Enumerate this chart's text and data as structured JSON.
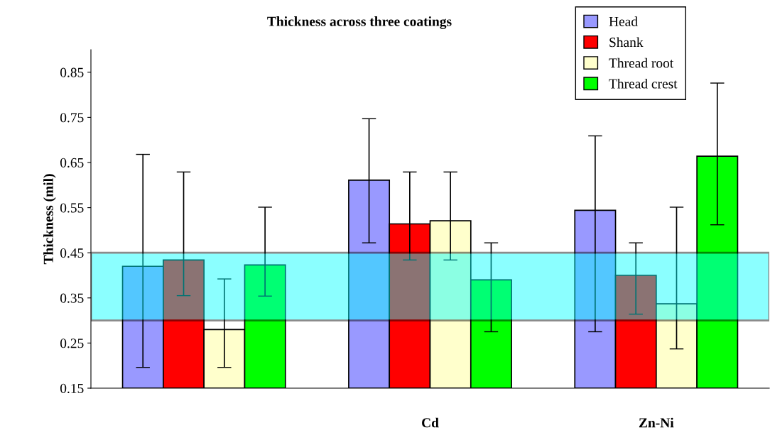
{
  "chart_data": {
    "type": "bar",
    "title": "Thickness across three coatings",
    "ylabel": "Thickness (mil)",
    "categories": [
      null,
      "Cd",
      "Zn-Ni"
    ],
    "series": [
      {
        "name": "Head",
        "color": "#9999ff",
        "values": [
          0.42,
          0.611,
          0.544
        ],
        "errors": [
          [
            0.196,
            0.668
          ],
          [
            0.472,
            0.747
          ],
          [
            0.275,
            0.709
          ]
        ]
      },
      {
        "name": "Shank",
        "color": "#ff0000",
        "values": [
          0.434,
          0.514,
          0.4
        ],
        "errors": [
          [
            0.355,
            0.629
          ],
          [
            0.434,
            0.629
          ],
          [
            0.314,
            0.472
          ]
        ]
      },
      {
        "name": "Thread root",
        "color": "#ffffcc",
        "values": [
          0.28,
          0.521,
          0.337
        ],
        "errors": [
          [
            0.196,
            0.392
          ],
          [
            0.434,
            0.629
          ],
          [
            0.237,
            0.551
          ]
        ]
      },
      {
        "name": "Thread crest",
        "color": "#00ff00",
        "values": [
          0.423,
          0.39,
          0.664
        ],
        "errors": [
          [
            0.354,
            0.551
          ],
          [
            0.275,
            0.472
          ],
          [
            0.512,
            0.826
          ]
        ]
      }
    ],
    "ylim": [
      0.15,
      0.9
    ],
    "yticks": [
      0.15,
      0.25,
      0.35,
      0.45,
      0.55,
      0.65,
      0.75,
      0.85
    ],
    "bands": [
      {
        "axis": "y",
        "from": 0.3,
        "to": 0.45,
        "color": "#00ffff"
      }
    ],
    "grid": false,
    "legend": "top right"
  }
}
